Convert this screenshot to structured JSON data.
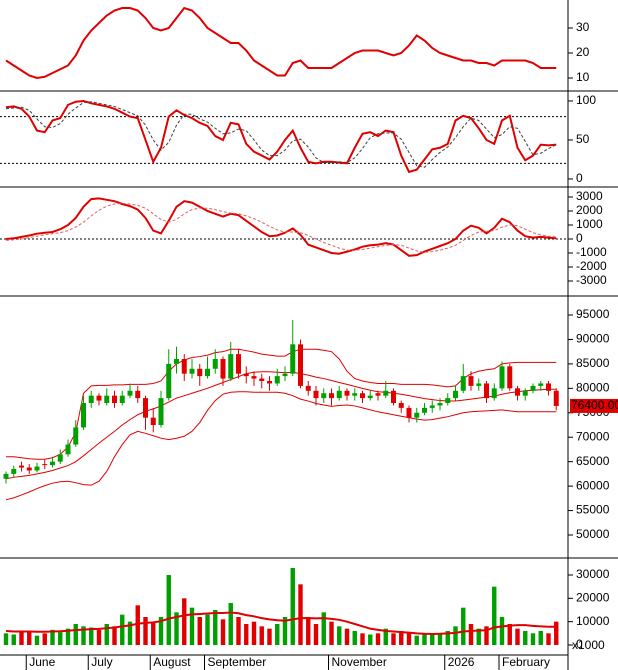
{
  "chart_data": [
    {
      "type": "line",
      "ylim": [
        4.8,
        41.2
      ],
      "yticks": [
        10,
        20,
        30
      ],
      "series": [
        {
          "color": "#e00000",
          "values": [
            17,
            15,
            13,
            11,
            10,
            10.5,
            12,
            13.5,
            15,
            19,
            25,
            29,
            32,
            35,
            37,
            38,
            38,
            37,
            34,
            30,
            29,
            30,
            34,
            38,
            37,
            34,
            30,
            28,
            26,
            24,
            24,
            21,
            17,
            15,
            13,
            11,
            11,
            16,
            17,
            14,
            14,
            14,
            14,
            16,
            18,
            20,
            21,
            21,
            21,
            20,
            19,
            20,
            23,
            27,
            25,
            22,
            20,
            19,
            18,
            17,
            17,
            16,
            16,
            15,
            17,
            17,
            17,
            17,
            16,
            14,
            14,
            14
          ]
        }
      ]
    },
    {
      "type": "line",
      "ylim": [
        -10.3,
        111.5
      ],
      "yticks": [
        0,
        50,
        100
      ],
      "levels": [
        20,
        80
      ],
      "series": [
        {
          "color": "#e00000",
          "values": [
            92,
            93,
            90,
            80,
            62,
            60,
            75,
            78,
            95,
            99,
            100,
            97,
            95,
            93,
            90,
            85,
            80,
            78,
            50,
            22,
            40,
            80,
            88,
            82,
            78,
            72,
            68,
            55,
            50,
            72,
            70,
            45,
            35,
            30,
            25,
            35,
            50,
            62,
            40,
            22,
            20,
            22,
            22,
            21,
            20,
            40,
            58,
            60,
            55,
            62,
            60,
            30,
            9,
            12,
            25,
            38,
            40,
            45,
            75,
            81,
            78,
            65,
            50,
            45,
            75,
            81,
            40,
            24,
            30,
            44,
            43,
            44
          ]
        },
        {
          "color": "#404040",
          "dashed": true,
          "values": [
            90,
            91,
            92,
            88,
            77,
            67,
            66,
            71,
            83,
            91,
            98,
            99,
            97,
            95,
            93,
            89,
            85,
            81,
            69,
            50,
            37,
            47,
            69,
            83,
            83,
            77,
            73,
            65,
            58,
            59,
            64,
            62,
            50,
            37,
            30,
            30,
            37,
            49,
            51,
            41,
            27,
            21,
            21,
            22,
            21,
            27,
            39,
            53,
            58,
            59,
            59,
            51,
            34,
            17,
            15,
            25,
            34,
            41,
            53,
            67,
            78,
            75,
            64,
            53,
            57,
            67,
            65,
            48,
            31,
            33,
            39,
            44
          ]
        }
      ]
    },
    {
      "type": "line",
      "ylim": [
        -4071,
        3643
      ],
      "yticks": [
        -3000,
        -2000,
        -1000,
        0,
        1000,
        2000,
        3000
      ],
      "levels": [
        0
      ],
      "series": [
        {
          "color": "#e00000",
          "values": [
            0,
            50,
            150,
            250,
            380,
            450,
            500,
            700,
            1000,
            1500,
            2300,
            2850,
            2900,
            2800,
            2700,
            2500,
            2350,
            2100,
            1500,
            600,
            400,
            1300,
            2300,
            2700,
            2600,
            2300,
            2000,
            1800,
            1600,
            1800,
            1700,
            1300,
            900,
            500,
            200,
            250,
            450,
            750,
            300,
            -400,
            -600,
            -800,
            -1000,
            -1050,
            -900,
            -750,
            -550,
            -450,
            -400,
            -300,
            -400,
            -800,
            -1200,
            -1150,
            -900,
            -700,
            -500,
            -300,
            0,
            600,
            950,
            800,
            400,
            800,
            1450,
            1200,
            600,
            200,
            100,
            150,
            100,
            50
          ]
        },
        {
          "color": "#e06060",
          "dashed": true,
          "values": [
            -100,
            -50,
            0,
            100,
            200,
            300,
            380,
            450,
            600,
            850,
            1200,
            1650,
            2050,
            2350,
            2500,
            2550,
            2500,
            2400,
            2200,
            1800,
            1400,
            1200,
            1400,
            1800,
            2100,
            2200,
            2200,
            2100,
            1950,
            1850,
            1800,
            1650,
            1450,
            1200,
            900,
            650,
            500,
            500,
            450,
            250,
            0,
            -250,
            -450,
            -650,
            -800,
            -800,
            -750,
            -650,
            -550,
            -450,
            -400,
            -450,
            -650,
            -850,
            -950,
            -900,
            -800,
            -650,
            -450,
            -100,
            250,
            500,
            550,
            600,
            850,
            1000,
            950,
            700,
            450,
            300,
            200,
            150
          ]
        }
      ]
    },
    {
      "type": "candlestick",
      "ylim": [
        45296,
        98682
      ],
      "yticks": [
        50000,
        55000,
        60000,
        65000,
        70000,
        75000,
        80000,
        85000,
        90000,
        95000
      ],
      "up_color": "#00a000",
      "down_color": "#e00000",
      "open": [
        61500,
        62500,
        64200,
        63800,
        63200,
        64500,
        64300,
        65000,
        66500,
        68500,
        72000,
        77000,
        78500,
        77000,
        78500,
        77000,
        78500,
        79500,
        78000,
        74000,
        72500,
        78000,
        85000,
        86000,
        83000,
        84000,
        82500,
        84000,
        86000,
        82000,
        87000,
        83000,
        82500,
        82000,
        81500,
        81000,
        82500,
        83000,
        89000,
        80500,
        79500,
        78000,
        79000,
        78000,
        79500,
        78500,
        79000,
        78000,
        79000,
        78500,
        79500,
        77000,
        76000,
        74000,
        75000,
        76000,
        76500,
        77000,
        78000,
        79500,
        82500,
        80500,
        81000,
        78000,
        80000,
        84500,
        80000,
        78500,
        79500,
        80500,
        81000,
        79500
      ],
      "high": [
        63000,
        64200,
        65000,
        64500,
        64800,
        65500,
        66000,
        67500,
        69500,
        73500,
        78500,
        79500,
        79000,
        80000,
        79500,
        79500,
        81000,
        80500,
        78500,
        76000,
        79500,
        88000,
        88500,
        87000,
        86000,
        85000,
        86500,
        88000,
        86500,
        89500,
        88000,
        84500,
        83500,
        83000,
        82500,
        84000,
        84500,
        94000,
        90000,
        81500,
        80500,
        80000,
        80000,
        80500,
        80000,
        80000,
        79500,
        79500,
        79500,
        81500,
        80000,
        77500,
        76500,
        76000,
        77000,
        77500,
        78000,
        79000,
        80500,
        85000,
        83500,
        82000,
        81500,
        81000,
        85500,
        85000,
        80500,
        80000,
        81000,
        81500,
        81500,
        80000
      ],
      "low": [
        60500,
        61800,
        63000,
        62500,
        62800,
        63500,
        63800,
        64500,
        66000,
        68000,
        71500,
        76000,
        76500,
        76500,
        76000,
        76500,
        78000,
        77000,
        71500,
        71000,
        72000,
        77500,
        83000,
        81500,
        82000,
        80500,
        82000,
        83000,
        80500,
        81500,
        82000,
        81000,
        80500,
        80000,
        79500,
        80500,
        81500,
        82500,
        80000,
        78500,
        76500,
        77000,
        76500,
        77500,
        77500,
        77500,
        77000,
        77500,
        77500,
        78000,
        76500,
        75000,
        73000,
        73000,
        74500,
        75000,
        75500,
        76500,
        77500,
        79000,
        79500,
        79500,
        77000,
        77500,
        79500,
        79500,
        77500,
        77500,
        79000,
        79500,
        78500,
        75500
      ],
      "close": [
        62500,
        63500,
        63800,
        63200,
        64000,
        64300,
        65000,
        66500,
        68500,
        72000,
        77000,
        78500,
        77500,
        78500,
        77000,
        78500,
        79500,
        78000,
        74000,
        72500,
        78000,
        85000,
        86000,
        83000,
        84000,
        82500,
        84000,
        86000,
        82000,
        87000,
        83000,
        82500,
        82000,
        81500,
        81000,
        82500,
        83000,
        89000,
        80500,
        79500,
        78000,
        79000,
        78000,
        79500,
        78500,
        79000,
        78000,
        78500,
        78500,
        79500,
        77000,
        76000,
        74000,
        75000,
        76000,
        76500,
        77000,
        78000,
        79500,
        82500,
        80500,
        81000,
        78000,
        80000,
        84500,
        80000,
        78500,
        79500,
        80500,
        81000,
        79500,
        76400
      ],
      "bands": [
        {
          "color": "#e00000",
          "values": [
            66000,
            66000,
            65800,
            65600,
            65500,
            65500,
            65800,
            66500,
            68000,
            71000,
            79000,
            80500,
            80600,
            80600,
            80700,
            80700,
            80800,
            80800,
            80800,
            81000,
            81500,
            83500,
            85000,
            85800,
            86300,
            86500,
            86800,
            87300,
            87500,
            88000,
            88000,
            87700,
            87400,
            87000,
            86800,
            86600,
            86600,
            87500,
            88000,
            88000,
            88000,
            87800,
            87500,
            86000,
            83500,
            82000,
            81500,
            81200,
            81000,
            81000,
            81000,
            80800,
            80800,
            80800,
            80800,
            80700,
            80500,
            80300,
            80500,
            82000,
            83000,
            83500,
            83800,
            84000,
            85000,
            85200,
            85300,
            85300,
            85300,
            85300,
            85300,
            85300
          ]
        },
        {
          "color": "#e00000",
          "values": [
            61500,
            61800,
            62000,
            62200,
            62500,
            62800,
            63200,
            63700,
            64200,
            65000,
            66200,
            67500,
            68800,
            70000,
            71200,
            72500,
            73600,
            74600,
            75300,
            75800,
            76400,
            77200,
            78000,
            78500,
            79000,
            79500,
            80000,
            80600,
            81200,
            81800,
            82400,
            83000,
            83300,
            83400,
            83400,
            83300,
            83200,
            83300,
            83000,
            82700,
            82300,
            82000,
            81600,
            81200,
            80800,
            80400,
            80000,
            79600,
            79300,
            79200,
            79000,
            78800,
            78500,
            78200,
            77900,
            77700,
            77500,
            77400,
            77400,
            77600,
            77800,
            78000,
            78200,
            78400,
            78800,
            79100,
            79300,
            79500,
            79600,
            79700,
            79800,
            79800
          ]
        },
        {
          "color": "#e00000",
          "values": [
            57200,
            57600,
            58200,
            58800,
            59500,
            60100,
            60600,
            60900,
            61000,
            60700,
            60300,
            60200,
            61000,
            63000,
            66000,
            68500,
            70500,
            71200,
            70800,
            70300,
            69800,
            69500,
            69800,
            70200,
            71200,
            73000,
            75500,
            77500,
            78800,
            79200,
            79300,
            79300,
            79200,
            79200,
            79200,
            79200,
            79000,
            78500,
            77800,
            77400,
            76900,
            76600,
            76300,
            76500,
            76600,
            76400,
            76000,
            75600,
            75200,
            74900,
            74600,
            74300,
            74000,
            73700,
            73500,
            73600,
            73900,
            74200,
            74600,
            75000,
            75200,
            75300,
            75400,
            75500,
            75600,
            75400,
            75200,
            75200,
            75200,
            75200,
            75200,
            75200
          ]
        }
      ],
      "last_price": {
        "value": 76400,
        "label": "76400.00"
      }
    },
    {
      "type": "bar",
      "ylim": [
        -4290,
        36860
      ],
      "yticks": [
        0,
        10000,
        20000,
        30000
      ],
      "unit_label": "x1000",
      "categories": [
        null,
        null,
        null,
        "June",
        null,
        null,
        null,
        null,
        null,
        null,
        null,
        "July",
        null,
        null,
        null,
        null,
        null,
        null,
        null,
        "August",
        null,
        null,
        null,
        null,
        null,
        null,
        "September",
        null,
        null,
        null,
        null,
        null,
        null,
        null,
        null,
        null,
        null,
        null,
        null,
        null,
        null,
        null,
        "November",
        null,
        null,
        null,
        null,
        null,
        null,
        null,
        null,
        null,
        null,
        null,
        null,
        null,
        null,
        "2026",
        null,
        null,
        null,
        null,
        null,
        null,
        "February",
        null,
        null,
        null,
        null,
        null,
        null,
        null
      ],
      "values": [
        5000,
        4500,
        6000,
        5500,
        4000,
        5000,
        6500,
        5500,
        7000,
        9000,
        8000,
        7500,
        6500,
        9000,
        8000,
        13000,
        10000,
        17000,
        12000,
        10000,
        12000,
        30000,
        14000,
        20000,
        16000,
        12000,
        13000,
        15000,
        11000,
        18000,
        12000,
        9000,
        10000,
        8000,
        7000,
        9000,
        12000,
        33000,
        26000,
        12000,
        9000,
        14000,
        10000,
        8000,
        7000,
        6000,
        5000,
        4500,
        5000,
        7000,
        5000,
        6000,
        5000,
        4000,
        5000,
        4500,
        5000,
        6000,
        8000,
        16000,
        9000,
        7000,
        8000,
        25000,
        12000,
        9000,
        7000,
        6000,
        5000,
        6000,
        5000,
        10000
      ],
      "moving_average": {
        "color": "#e00000",
        "values": [
          6000,
          5800,
          5800,
          5800,
          5700,
          5700,
          5800,
          5900,
          6100,
          6400,
          6600,
          6800,
          6900,
          7200,
          7500,
          8000,
          8400,
          9100,
          9500,
          9700,
          10200,
          11300,
          12000,
          12700,
          13100,
          13300,
          13500,
          13700,
          13700,
          13900,
          13600,
          12800,
          12300,
          11500,
          11000,
          10600,
          10400,
          11000,
          11500,
          11500,
          11400,
          11500,
          11200,
          10800,
          10000,
          9000,
          8000,
          7000,
          6500,
          6000,
          5800,
          5500,
          5300,
          5000,
          4800,
          4700,
          4800,
          5000,
          5200,
          5800,
          6000,
          6200,
          6300,
          7500,
          8000,
          8300,
          8500,
          8500,
          8200,
          8000,
          7800,
          7800
        ]
      }
    }
  ]
}
